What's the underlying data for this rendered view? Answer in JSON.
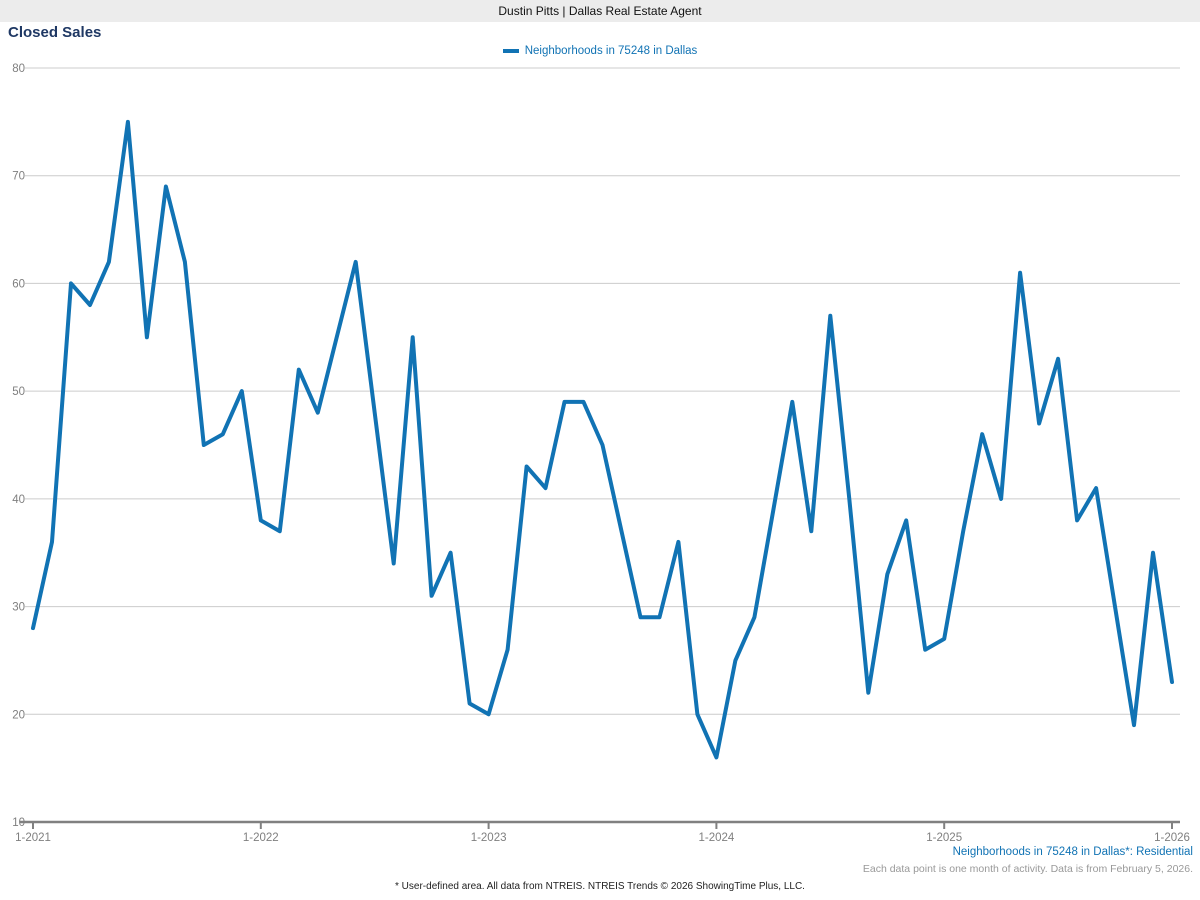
{
  "header": {
    "title": "Dustin Pitts | Dallas Real Estate Agent"
  },
  "page_title": "Closed Sales",
  "legend": {
    "label": "Neighborhoods in 75248 in Dallas"
  },
  "footer": {
    "series_note": "Neighborhoods in 75248 in Dallas*: Residential",
    "data_note": "Each data point is one month of activity. Data is from February 5, 2026.",
    "disclaimer": "* User-defined area. All data from NTREIS. NTREIS Trends © 2026 ShowingTime Plus, LLC."
  },
  "colors": {
    "accent": "#1173b4",
    "title_text": "#1f3864",
    "grid_line": "#cccccc",
    "axis_line": "#808080",
    "axis_label": "#7f7f7f",
    "note_gray": "#999999"
  },
  "chart_data": {
    "type": "line",
    "title": "Closed Sales",
    "series": [
      {
        "name": "Neighborhoods in 75248 in Dallas",
        "values": [
          28,
          36,
          60,
          58,
          62,
          75,
          55,
          69,
          62,
          45,
          46,
          50,
          38,
          37,
          52,
          48,
          55,
          62,
          48,
          34,
          55,
          31,
          35,
          21,
          20,
          26,
          43,
          41,
          49,
          49,
          45,
          37,
          29,
          29,
          36,
          20,
          16,
          25,
          29,
          39,
          49,
          37,
          57,
          40,
          22,
          33,
          38,
          26,
          27,
          37,
          46,
          40,
          61,
          47,
          53,
          38,
          41,
          30,
          19,
          35,
          23
        ]
      }
    ],
    "x_unit": "month",
    "x_start_label": "1-2021",
    "x_tick_labels": [
      "1-2021",
      "1-2022",
      "1-2023",
      "1-2024",
      "1-2025",
      "1-2026"
    ],
    "x_tick_indices": [
      0,
      12,
      24,
      36,
      48,
      60
    ],
    "y_ticks": [
      10,
      20,
      30,
      40,
      50,
      60,
      70,
      80
    ],
    "ylim": [
      10,
      80
    ],
    "xlabel": "",
    "ylabel": "",
    "grid": true,
    "legend_position": "top-center"
  }
}
